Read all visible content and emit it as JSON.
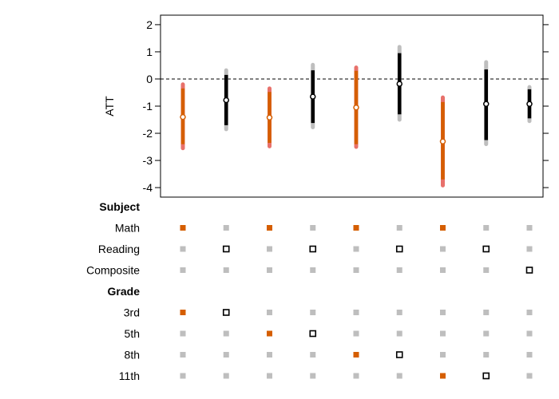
{
  "chart_data": {
    "type": "scatter",
    "ylabel": "ATT",
    "ylim": [
      -4.35,
      2.35
    ],
    "yticks": [
      2,
      1,
      0,
      -1,
      -2,
      -3,
      -4
    ],
    "reference_line": 0,
    "colors": {
      "highlight": "#D55E00",
      "highlight_outer": "#E8716B",
      "default": "#000000",
      "default_outer": "#BEBEBE",
      "inactive_marker": "#BEBEBE"
    },
    "estimates": [
      {
        "est": -1.4,
        "ci90": [
          -2.4,
          -0.35
        ],
        "ci95": [
          -2.55,
          -0.2
        ],
        "highlight": true
      },
      {
        "est": -0.78,
        "ci90": [
          -1.7,
          0.15
        ],
        "ci95": [
          -1.85,
          0.32
        ],
        "highlight": false
      },
      {
        "est": -1.42,
        "ci90": [
          -2.35,
          -0.48
        ],
        "ci95": [
          -2.48,
          -0.35
        ],
        "highlight": true
      },
      {
        "est": -0.65,
        "ci90": [
          -1.62,
          0.32
        ],
        "ci95": [
          -1.78,
          0.52
        ],
        "highlight": false
      },
      {
        "est": -1.05,
        "ci90": [
          -2.4,
          0.3
        ],
        "ci95": [
          -2.5,
          0.42
        ],
        "highlight": true
      },
      {
        "est": -0.18,
        "ci90": [
          -1.3,
          0.95
        ],
        "ci95": [
          -1.5,
          1.18
        ],
        "highlight": false
      },
      {
        "est": -2.3,
        "ci90": [
          -3.7,
          -0.85
        ],
        "ci95": [
          -3.92,
          -0.68
        ],
        "highlight": true
      },
      {
        "est": -0.92,
        "ci90": [
          -2.25,
          0.35
        ],
        "ci95": [
          -2.4,
          0.62
        ],
        "highlight": false
      },
      {
        "est": -0.92,
        "ci90": [
          -1.45,
          -0.38
        ],
        "ci95": [
          -1.55,
          -0.3
        ],
        "highlight": false
      }
    ],
    "specification": {
      "groups": [
        {
          "label": "Subject",
          "rows": [
            {
              "label": "Math",
              "active": [
                true,
                false,
                true,
                false,
                true,
                false,
                true,
                false,
                false
              ]
            },
            {
              "label": "Reading",
              "active": [
                false,
                true,
                false,
                true,
                false,
                true,
                false,
                true,
                false
              ]
            },
            {
              "label": "Composite",
              "active": [
                false,
                false,
                false,
                false,
                false,
                false,
                false,
                false,
                true
              ]
            }
          ]
        },
        {
          "label": "Grade",
          "rows": [
            {
              "label": "3rd",
              "active": [
                true,
                true,
                false,
                false,
                false,
                false,
                false,
                false,
                false
              ]
            },
            {
              "label": "5th",
              "active": [
                false,
                false,
                true,
                true,
                false,
                false,
                false,
                false,
                false
              ]
            },
            {
              "label": "8th",
              "active": [
                false,
                false,
                false,
                false,
                true,
                true,
                false,
                false,
                false
              ]
            },
            {
              "label": "11th",
              "active": [
                false,
                false,
                false,
                false,
                false,
                false,
                true,
                true,
                false
              ]
            }
          ]
        }
      ]
    }
  }
}
